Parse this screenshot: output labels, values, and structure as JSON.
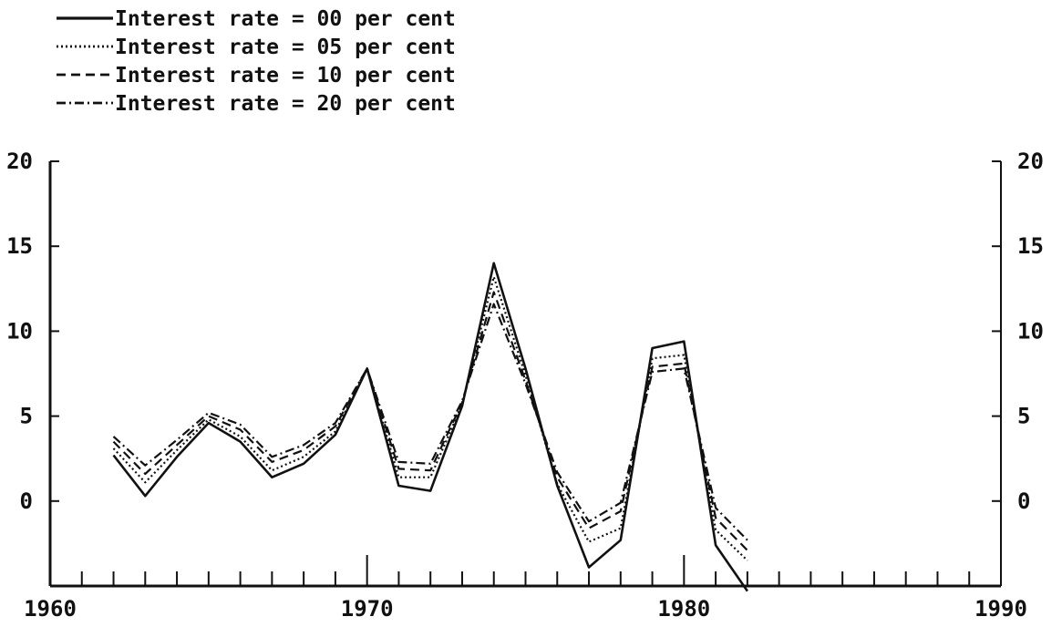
{
  "chart_data": {
    "type": "line",
    "title": "",
    "xlabel": "",
    "ylabel": "",
    "xlim": [
      1960,
      1990
    ],
    "ylim": [
      -5,
      20
    ],
    "x_ticks": [
      "1960",
      "1970",
      "1980",
      "1990"
    ],
    "y_ticks": [
      "0",
      "5",
      "10",
      "15",
      "20"
    ],
    "grid": false,
    "legend_position": "top-left",
    "x": [
      1962,
      1963,
      1964,
      1965,
      1966,
      1967,
      1968,
      1969,
      1970,
      1971,
      1972,
      1973,
      1974,
      1975,
      1976,
      1977,
      1978,
      1979,
      1980,
      1981,
      1982
    ],
    "series": [
      {
        "name": "Interest rate = 00 per cent",
        "style": "solid",
        "values": [
          2.7,
          0.3,
          2.6,
          4.6,
          3.5,
          1.4,
          2.2,
          3.9,
          7.8,
          0.9,
          0.6,
          5.6,
          14.0,
          7.8,
          0.9,
          -3.9,
          -2.3,
          9.0,
          9.4,
          -2.6,
          -5.3
        ]
      },
      {
        "name": "Interest rate = 05 per cent",
        "style": "dotted",
        "values": [
          3.1,
          1.1,
          3.0,
          4.8,
          3.8,
          1.8,
          2.6,
          4.1,
          7.8,
          1.4,
          1.4,
          5.7,
          13.2,
          7.4,
          1.0,
          -2.4,
          -1.6,
          8.4,
          8.6,
          -1.7,
          -3.5
        ]
      },
      {
        "name": "Interest rate = 10 per cent",
        "style": "dashed",
        "values": [
          3.5,
          1.6,
          3.3,
          5.0,
          4.2,
          2.3,
          3.0,
          4.4,
          7.8,
          1.9,
          1.8,
          5.8,
          12.3,
          7.1,
          1.4,
          -1.6,
          -0.6,
          7.9,
          8.1,
          -1.0,
          -2.9
        ]
      },
      {
        "name": "Interest rate = 20 per cent",
        "style": "dashdot",
        "values": [
          3.8,
          2.1,
          3.6,
          5.2,
          4.5,
          2.6,
          3.3,
          4.6,
          7.8,
          2.3,
          2.2,
          5.9,
          11.6,
          6.9,
          1.7,
          -1.2,
          -0.1,
          7.6,
          7.8,
          -0.4,
          -2.3
        ]
      }
    ]
  }
}
